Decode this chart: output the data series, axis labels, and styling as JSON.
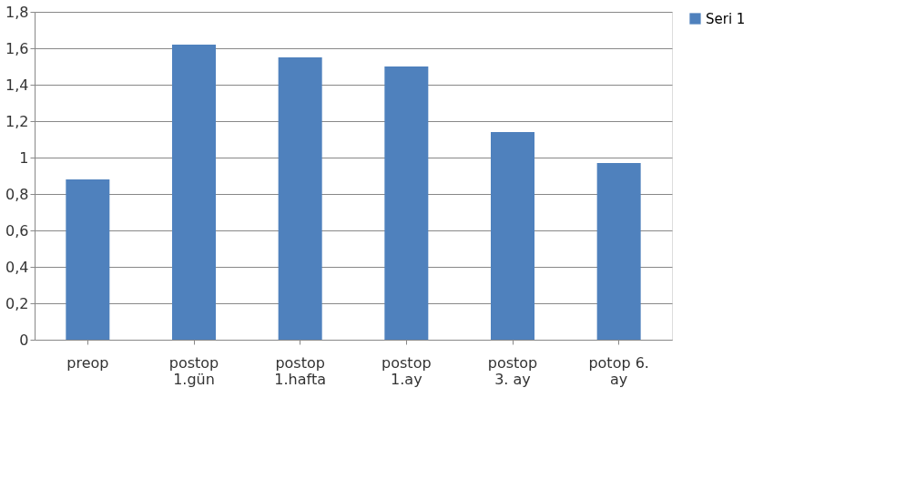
{
  "chart_data": {
    "type": "bar",
    "categories": [
      "preop",
      "postop\n1.gün",
      "postop\n1.hafta",
      "postop\n1.ay",
      "postop\n3. ay",
      "potop 6.\nay"
    ],
    "series": [
      {
        "name": "Seri 1",
        "color": "#4f81bd",
        "values": [
          0.88,
          1.62,
          1.55,
          1.5,
          1.14,
          0.97
        ]
      }
    ],
    "ylim": [
      0,
      1.8
    ],
    "yticks": [
      0,
      {
        "value": 0.2,
        "label": "0,2"
      },
      {
        "value": 0.4,
        "label": "0,4"
      },
      {
        "value": 0.6,
        "label": "0,6"
      },
      {
        "value": 0.8,
        "label": "0,8"
      },
      1,
      {
        "value": 1.2,
        "label": "1,2"
      },
      {
        "value": 1.4,
        "label": "1,4"
      },
      {
        "value": 1.6,
        "label": "1,6"
      },
      {
        "value": 1.8,
        "label": "1,8"
      }
    ],
    "grid": "y",
    "legend": "right"
  }
}
